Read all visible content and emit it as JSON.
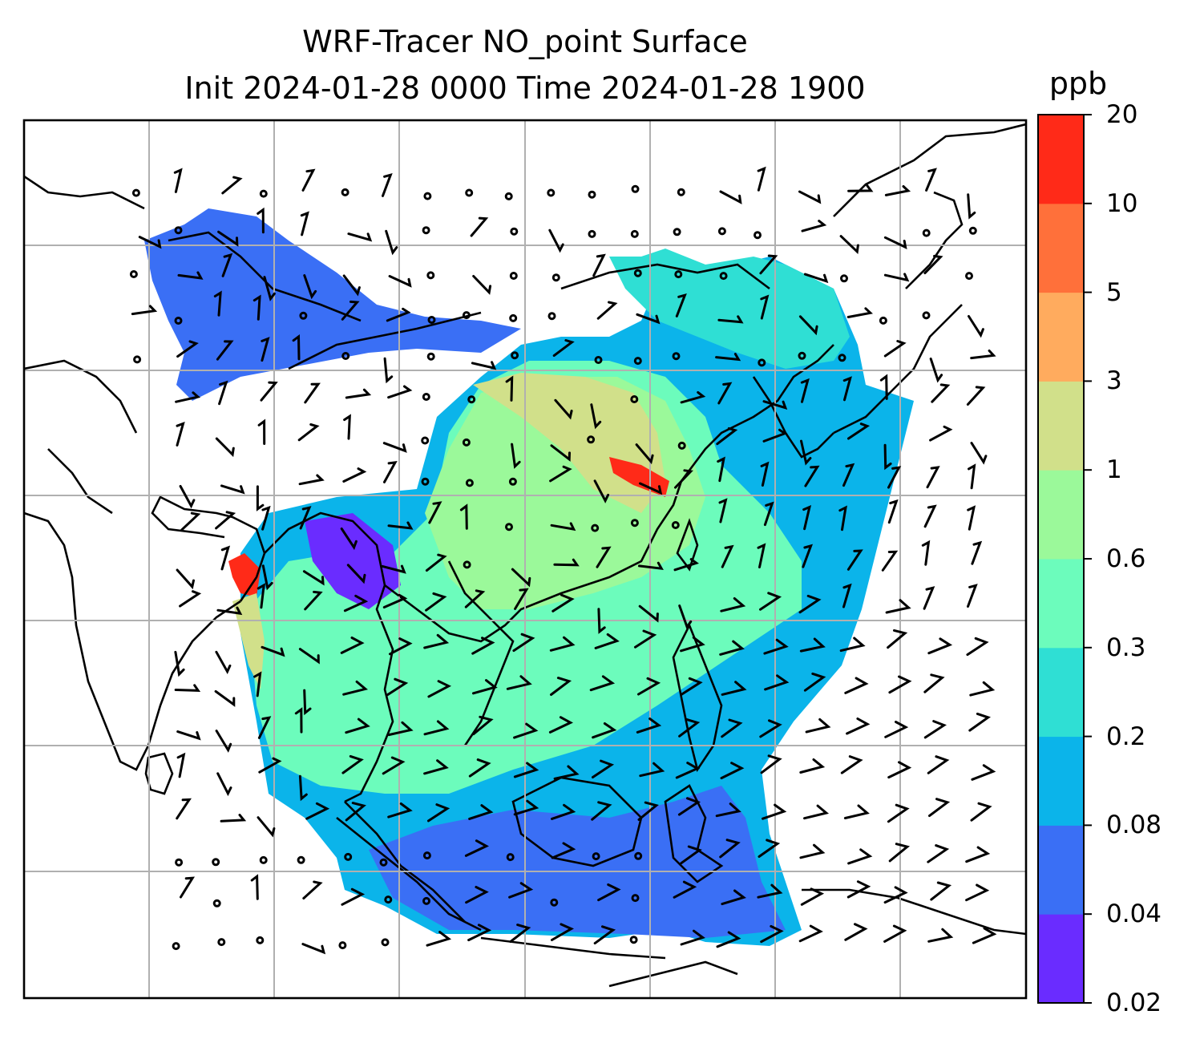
{
  "title_line1": "WRF-Tracer NO_point Surface",
  "title_line2": "Init 2024-01-28 0000 Time 2024-01-28 1900",
  "colorbar": {
    "unit": "ppb",
    "ticks": [
      "0.02",
      "0.04",
      "0.08",
      "0.2",
      "0.3",
      "0.6",
      "1",
      "3",
      "5",
      "10",
      "20"
    ],
    "colors": [
      "#6a2cff",
      "#3a6ff5",
      "#0bb4ea",
      "#2fdfd4",
      "#6cfcbc",
      "#9bf99a",
      "#d1e08a",
      "#ffab5e",
      "#ff703a",
      "#ff2a18"
    ]
  },
  "map": {
    "gridlines": "on",
    "field_colors": {
      "very_low": "#6a2cff",
      "low": "#3a6ff5",
      "low_mid": "#0bb4ea",
      "mid": "#2fdfd4",
      "mid_high": "#6cfcbc",
      "high": "#9bf99a",
      "very_high": "#d1e08a",
      "peak": "#ff2a18"
    }
  }
}
